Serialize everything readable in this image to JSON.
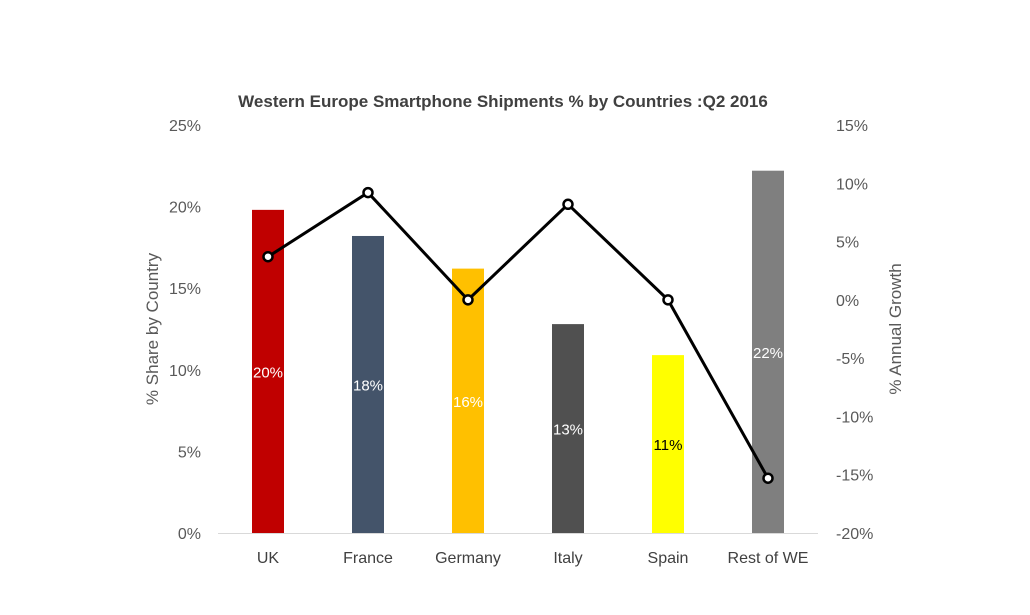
{
  "chart_data": {
    "type": "bar",
    "title": "Western Europe Smartphone Shipments % by Countries :Q2 2016",
    "categories": [
      "UK",
      "France",
      "Germany",
      "Italy",
      "Spain",
      "Rest of WE"
    ],
    "series": [
      {
        "kind": "bar",
        "axis": "left",
        "values": [
          19.8,
          18.2,
          16.2,
          12.8,
          10.9,
          22.2
        ],
        "labels": [
          "20%",
          "18%",
          "16%",
          "13%",
          "11%",
          "22%"
        ],
        "colors": [
          "#c00000",
          "#44546a",
          "#ffc000",
          "#505050",
          "#ffff00",
          "#7f7f7f"
        ],
        "label_colors": [
          "#ffffff",
          "#ffffff",
          "#ffffff",
          "#ffffff",
          "#000000",
          "#ffffff"
        ]
      },
      {
        "kind": "line",
        "axis": "right",
        "values": [
          3.7,
          9.2,
          0.0,
          8.2,
          0.0,
          -15.3
        ],
        "color": "#000000"
      }
    ],
    "y_left": {
      "label": "% Share by Country",
      "range": [
        0,
        25
      ],
      "ticks": [
        0,
        5,
        10,
        15,
        20,
        25
      ],
      "tick_labels": [
        "0%",
        "5%",
        "10%",
        "15%",
        "20%",
        "25%"
      ]
    },
    "y_right": {
      "label": "% Annual Growth",
      "range": [
        -20,
        15
      ],
      "ticks": [
        -20,
        -15,
        -10,
        -5,
        0,
        5,
        10,
        15
      ],
      "tick_labels": [
        "-20%",
        "-15%",
        "-10%",
        "-5%",
        "0%",
        "5%",
        "10%",
        "15%"
      ]
    },
    "grid": false,
    "legend": "none"
  }
}
